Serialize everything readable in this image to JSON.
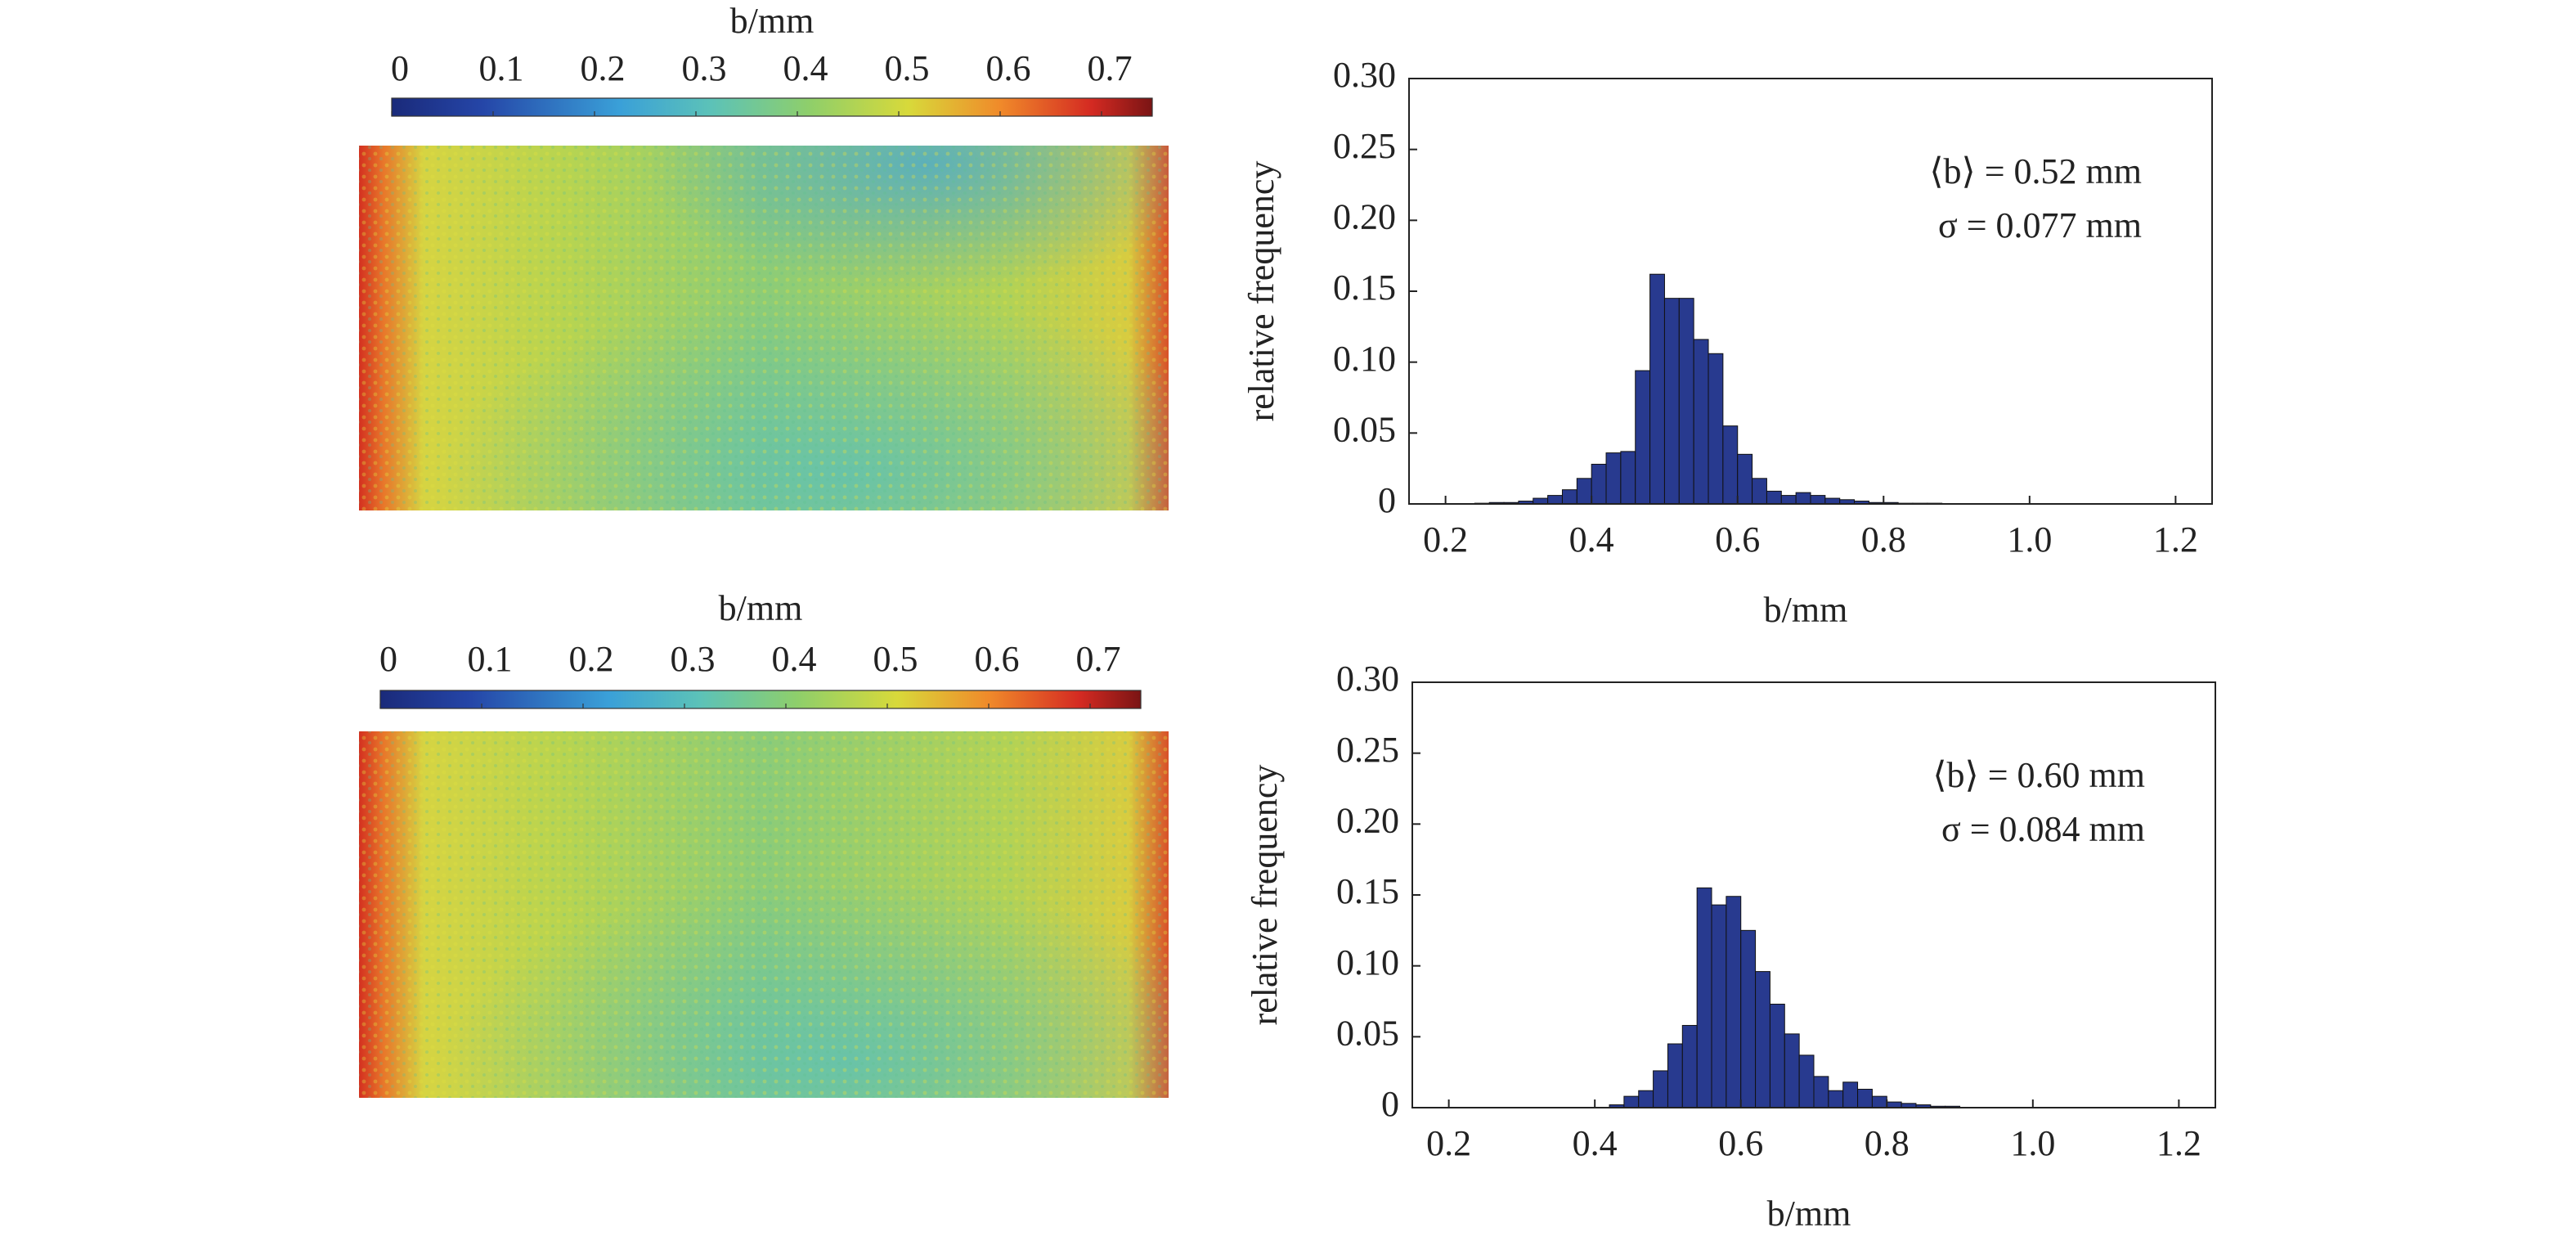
{
  "chart_data": [
    {
      "type": "heatmap",
      "colorbar_label": "b/mm",
      "colormap": "jet",
      "colorbar_lim": [
        0,
        0.75
      ],
      "colorbar_ticks": [
        0,
        0.1,
        0.2,
        0.3,
        0.4,
        0.5,
        0.6,
        0.7
      ]
    },
    {
      "type": "histogram",
      "color": "#283a8f",
      "xlabel": "b/mm",
      "ylabel": "relative frequency",
      "annotations": [
        "⟨b⟩ = 0.52 mm",
        "σ = 0.077 mm"
      ],
      "bins": [
        0.24,
        0.26,
        0.28,
        0.3,
        0.32,
        0.34,
        0.36,
        0.38,
        0.4,
        0.42,
        0.44,
        0.46,
        0.48,
        0.5,
        0.52,
        0.54,
        0.56,
        0.58,
        0.6,
        0.62,
        0.64,
        0.66,
        0.68,
        0.7,
        0.72,
        0.74,
        0.76,
        0.78,
        0.8,
        0.82,
        0.84,
        0.86,
        0.88
      ],
      "values": [
        0.0005,
        0.001,
        0.001,
        0.002,
        0.004,
        0.006,
        0.01,
        0.018,
        0.028,
        0.036,
        0.037,
        0.094,
        0.162,
        0.145,
        0.145,
        0.116,
        0.106,
        0.055,
        0.035,
        0.018,
        0.009,
        0.006,
        0.008,
        0.006,
        0.004,
        0.003,
        0.002,
        0.001,
        0.001,
        0.0005,
        0.0005,
        0.0005
      ],
      "xlim": [
        0.15,
        1.25
      ],
      "ylim": [
        0,
        0.3
      ],
      "xticks": [
        0.2,
        0.4,
        0.6,
        0.8,
        {
          "value": 1.0,
          "label": "1.0"
        },
        1.2
      ],
      "yticks": [
        0,
        {
          "value": 0.05,
          "label": "0.05"
        },
        {
          "value": 0.1,
          "label": "0.10"
        },
        {
          "value": 0.15,
          "label": "0.15"
        },
        {
          "value": 0.2,
          "label": "0.20"
        },
        {
          "value": 0.25,
          "label": "0.25"
        },
        {
          "value": 0.3,
          "label": "0.30"
        }
      ]
    },
    {
      "type": "heatmap",
      "colorbar_label": "b/mm",
      "colormap": "jet",
      "colorbar_lim": [
        0,
        0.75
      ],
      "colorbar_ticks": [
        0,
        0.1,
        0.2,
        0.3,
        0.4,
        0.5,
        0.6,
        0.7
      ]
    },
    {
      "type": "histogram",
      "color": "#283a8f",
      "xlabel": "b/mm",
      "ylabel": "relative frequency",
      "annotations": [
        "⟨b⟩ = 0.60 mm",
        "σ = 0.084 mm"
      ],
      "bins": [
        0.42,
        0.44,
        0.46,
        0.48,
        0.5,
        0.52,
        0.54,
        0.56,
        0.58,
        0.6,
        0.62,
        0.64,
        0.66,
        0.68,
        0.7,
        0.72,
        0.74,
        0.76,
        0.78,
        0.8,
        0.82,
        0.84,
        0.86,
        0.88,
        0.9
      ],
      "values": [
        0.002,
        0.008,
        0.012,
        0.026,
        0.045,
        0.058,
        0.155,
        0.143,
        0.149,
        0.125,
        0.096,
        0.073,
        0.052,
        0.037,
        0.022,
        0.012,
        0.018,
        0.013,
        0.008,
        0.004,
        0.003,
        0.002,
        0.001,
        0.001
      ],
      "xlim": [
        0.15,
        1.25
      ],
      "ylim": [
        0,
        0.3
      ],
      "xticks": [
        0.2,
        0.4,
        0.6,
        0.8,
        {
          "value": 1.0,
          "label": "1.0"
        },
        1.2
      ],
      "yticks": [
        0,
        {
          "value": 0.05,
          "label": "0.05"
        },
        {
          "value": 0.1,
          "label": "0.10"
        },
        {
          "value": 0.15,
          "label": "0.15"
        },
        {
          "value": 0.2,
          "label": "0.20"
        },
        {
          "value": 0.25,
          "label": "0.25"
        },
        {
          "value": 0.3,
          "label": "0.30"
        }
      ]
    }
  ]
}
